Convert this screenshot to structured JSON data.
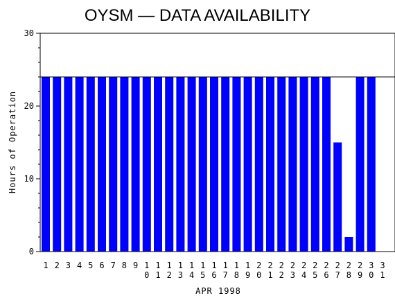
{
  "chart_data": {
    "type": "bar",
    "title": "OYSM — DATA AVAILABILITY",
    "xlabel": "APR 1998",
    "ylabel": "Hours of Operation",
    "ylim": [
      0,
      30
    ],
    "yticks": [
      "0",
      "10",
      "20",
      "30"
    ],
    "reference_line": 24,
    "bar_color": "#0000ff",
    "categories": [
      "1",
      "2",
      "3",
      "4",
      "5",
      "6",
      "7",
      "8",
      "9",
      "10",
      "11",
      "12",
      "13",
      "14",
      "15",
      "16",
      "17",
      "18",
      "19",
      "20",
      "21",
      "22",
      "23",
      "24",
      "25",
      "26",
      "27",
      "28",
      "29",
      "30",
      "31"
    ],
    "values": [
      24,
      24,
      24,
      24,
      24,
      24,
      24,
      24,
      24,
      24,
      24,
      24,
      24,
      24,
      24,
      24,
      24,
      24,
      24,
      24,
      24,
      24,
      24,
      24,
      24,
      24,
      15,
      2,
      24,
      24,
      null
    ]
  }
}
